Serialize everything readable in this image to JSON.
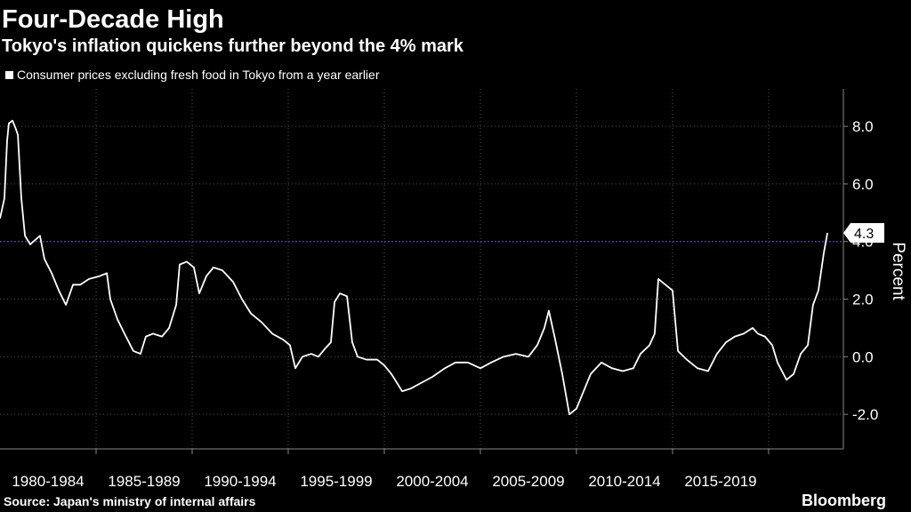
{
  "chart_data": {
    "type": "line",
    "title": "Four-Decade High",
    "subtitle": "Tokyo's inflation quickens further beyond the 4% mark",
    "y_label": "Percent",
    "source": "Source: Japan's ministry of internal affairs",
    "brand": "Bloomberg",
    "xlim": [
      1980,
      2023.89
    ],
    "ylim": [
      -3.2,
      9.3
    ],
    "xticks": [
      {
        "value": 1982.5,
        "label": "1980-1984"
      },
      {
        "value": 1987.5,
        "label": "1985-1989"
      },
      {
        "value": 1992.5,
        "label": "1990-1994"
      },
      {
        "value": 1997.5,
        "label": "1995-1999"
      },
      {
        "value": 2002.5,
        "label": "2000-2004"
      },
      {
        "value": 2007.5,
        "label": "2005-2009"
      },
      {
        "value": 2012.5,
        "label": "2010-2014"
      },
      {
        "value": 2017.5,
        "label": "2015-2019"
      }
    ],
    "xgrid": [
      1985,
      1990,
      1995,
      2000,
      2005,
      2010,
      2015,
      2020
    ],
    "yticks": [
      {
        "value": 8,
        "label": "8.0"
      },
      {
        "value": 6,
        "label": "6.0"
      },
      {
        "value": 4,
        "label": "4.0"
      },
      {
        "value": 2,
        "label": "2.0"
      },
      {
        "value": 0,
        "label": "0.0"
      },
      {
        "value": -2,
        "label": "-2.0"
      }
    ],
    "grid": true,
    "reference_line": 4,
    "end_label": 4.3,
    "x": [
      1980,
      1980.23,
      1980.37,
      1980.46,
      1980.65,
      1980.83,
      1980.93,
      1981.11,
      1981.3,
      1981.57,
      1982.08,
      1982.31,
      1982.69,
      1983.06,
      1983.43,
      1983.8,
      1984.17,
      1984.63,
      1985.19,
      1985.56,
      1985.74,
      1986.11,
      1986.48,
      1986.94,
      1987.31,
      1987.59,
      1987.96,
      1988.43,
      1988.8,
      1989.17,
      1989.35,
      1989.72,
      1990.09,
      1990.37,
      1990.74,
      1991.11,
      1991.57,
      1992.13,
      1992.59,
      1993.06,
      1993.61,
      1994.17,
      1994.72,
      1995.09,
      1995.37,
      1995.74,
      1996.2,
      1996.57,
      1996.94,
      1997.22,
      1997.41,
      1997.69,
      1998.06,
      1998.33,
      1998.61,
      1999.07,
      1999.63,
      2000,
      2000.37,
      2000.93,
      2001.39,
      2001.94,
      2002.5,
      2003.15,
      2003.7,
      2004.35,
      2005,
      2005.56,
      2006.2,
      2006.85,
      2007.5,
      2007.96,
      2008.33,
      2008.56,
      2008.89,
      2009.26,
      2009.63,
      2010,
      2010.37,
      2010.74,
      2011.3,
      2011.85,
      2012.41,
      2012.96,
      2013.33,
      2013.8,
      2014.07,
      2014.26,
      2014.63,
      2015,
      2015.28,
      2015.74,
      2016.3,
      2016.85,
      2017.31,
      2017.78,
      2018.24,
      2018.7,
      2019.17,
      2019.44,
      2019.81,
      2020.19,
      2020.46,
      2020.93,
      2021.3,
      2021.67,
      2022.04,
      2022.31,
      2022.59,
      2022.87,
      2023.06
    ],
    "series": [
      {
        "name": "Consumer prices excluding fresh food in Tokyo from a year earlier",
        "color": "#ffffff",
        "values": [
          4.8,
          5.5,
          7.5,
          8.1,
          8.2,
          7.9,
          7.7,
          5.5,
          4.2,
          3.9,
          4.2,
          3.4,
          2.9,
          2.3,
          1.8,
          2.5,
          2.5,
          2.7,
          2.8,
          2.9,
          2.0,
          1.3,
          0.8,
          0.2,
          0.1,
          0.7,
          0.8,
          0.7,
          1.0,
          1.8,
          3.2,
          3.3,
          3.1,
          2.2,
          2.8,
          3.1,
          3.0,
          2.6,
          2.0,
          1.5,
          1.2,
          0.8,
          0.6,
          0.4,
          -0.4,
          0.0,
          0.1,
          0.0,
          0.3,
          0.5,
          1.9,
          2.2,
          2.1,
          0.5,
          0.0,
          -0.1,
          -0.1,
          -0.3,
          -0.6,
          -1.2,
          -1.1,
          -0.9,
          -0.7,
          -0.4,
          -0.2,
          -0.2,
          -0.4,
          -0.2,
          0.0,
          0.1,
          0.0,
          0.4,
          1.0,
          1.6,
          0.6,
          -0.6,
          -2.0,
          -1.8,
          -1.2,
          -0.6,
          -0.2,
          -0.4,
          -0.5,
          -0.4,
          0.1,
          0.4,
          0.8,
          2.7,
          2.5,
          2.3,
          0.2,
          -0.1,
          -0.4,
          -0.5,
          0.1,
          0.5,
          0.7,
          0.8,
          1.0,
          0.8,
          0.7,
          0.4,
          -0.2,
          -0.8,
          -0.6,
          0.1,
          0.4,
          1.8,
          2.3,
          3.6,
          4.3
        ]
      }
    ]
  }
}
